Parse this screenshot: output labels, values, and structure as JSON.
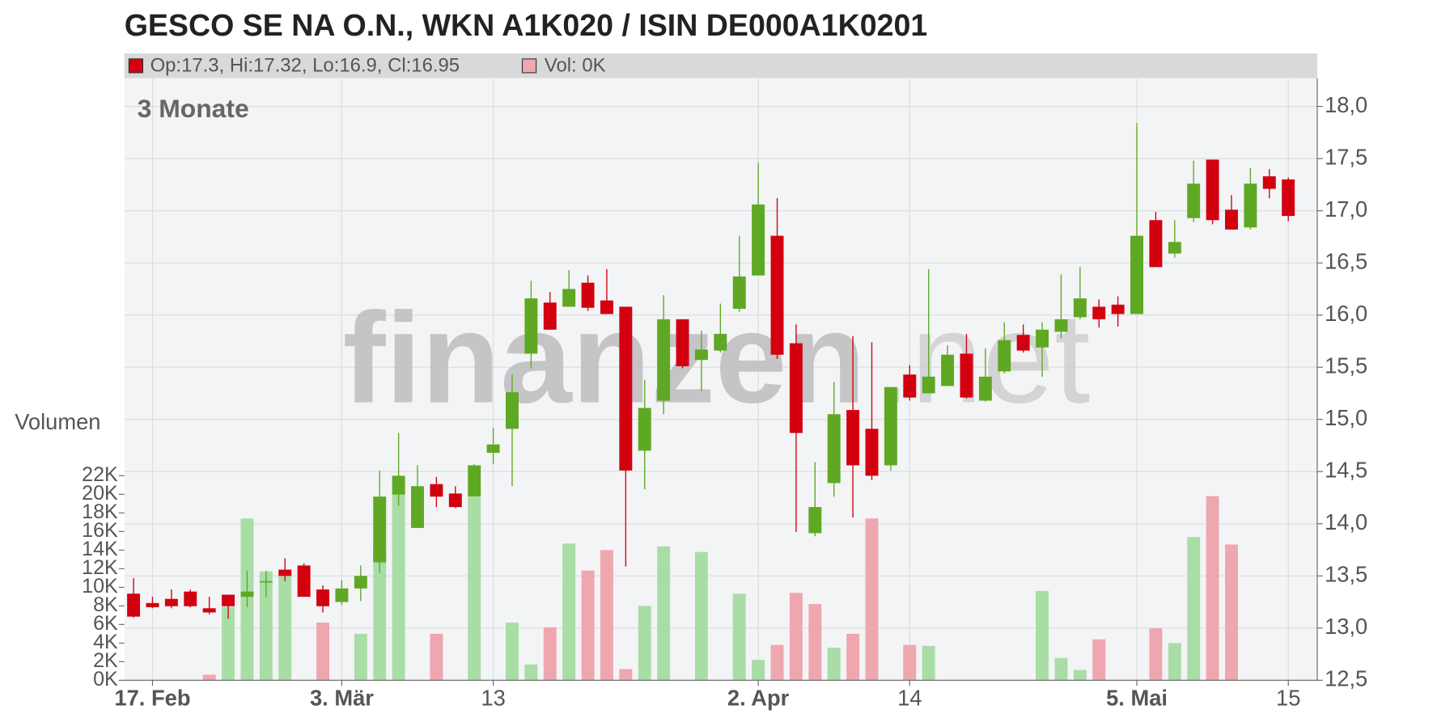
{
  "chart_data": {
    "type": "candlestick",
    "title": "GESCO SE NA O.N., WKN A1K020 / ISIN DE000A1K0201",
    "legend": [
      "Op:17.3, Hi:17.32, Lo:16.9, Cl:16.95",
      "Vol: 0K"
    ],
    "period_label": "3 Monate",
    "y2_label": "Volumen",
    "watermark": [
      "finanzen",
      ".net"
    ],
    "categories": [
      null,
      "17. Feb",
      null,
      null,
      null,
      null,
      null,
      null,
      null,
      null,
      null,
      "3. Mär",
      null,
      null,
      null,
      null,
      null,
      null,
      null,
      "13",
      null,
      null,
      null,
      null,
      null,
      null,
      null,
      null,
      null,
      null,
      null,
      null,
      null,
      "2. Apr",
      null,
      null,
      null,
      null,
      null,
      null,
      null,
      "14",
      null,
      null,
      null,
      null,
      null,
      null,
      null,
      null,
      null,
      null,
      null,
      "5. Mai",
      null,
      null,
      null,
      null,
      null,
      null,
      null,
      "15"
    ],
    "open": [
      13.33,
      13.24,
      13.28,
      13.35,
      13.19,
      13.32,
      13.3,
      13.44,
      13.56,
      13.6,
      13.37,
      13.25,
      13.38,
      13.63,
      14.28,
      13.96,
      14.38,
      14.29,
      14.26,
      14.68,
      14.91,
      15.63,
      16.12,
      16.08,
      16.31,
      16.14,
      16.08,
      14.7,
      15.18,
      15.96,
      15.57,
      15.66,
      16.06,
      16.38,
      16.76,
      15.73,
      13.91,
      14.39,
      15.09,
      14.91,
      14.56,
      15.43,
      15.25,
      15.32,
      15.63,
      15.18,
      15.46,
      15.81,
      15.69,
      15.84,
      15.98,
      16.08,
      16.1,
      16.01,
      16.91,
      16.59,
      16.93,
      17.49,
      17.01,
      16.84,
      17.33,
      17.3
    ],
    "high": [
      13.48,
      13.3,
      13.37,
      13.37,
      13.3,
      13.32,
      13.55,
      13.55,
      13.67,
      13.62,
      13.41,
      13.46,
      13.6,
      14.51,
      14.87,
      14.56,
      14.45,
      14.36,
      14.57,
      14.92,
      15.43,
      16.33,
      16.22,
      16.43,
      16.38,
      16.44,
      16.08,
      15.38,
      16.19,
      15.96,
      15.85,
      16.11,
      16.76,
      17.46,
      17.12,
      15.91,
      14.59,
      15.36,
      15.8,
      15.74,
      15.31,
      15.52,
      16.44,
      15.71,
      15.82,
      15.68,
      15.93,
      15.91,
      15.93,
      16.39,
      16.46,
      16.15,
      16.18,
      17.84,
      16.99,
      16.91,
      17.48,
      17.49,
      17.15,
      17.41,
      17.4,
      17.32
    ],
    "low": [
      13.1,
      13.19,
      13.19,
      13.2,
      13.13,
      13.09,
      13.2,
      13.3,
      13.45,
      13.3,
      13.15,
      13.22,
      13.26,
      13.53,
      14.17,
      13.96,
      14.16,
      14.15,
      14.26,
      14.57,
      14.36,
      15.49,
      15.86,
      16.08,
      16.04,
      16.01,
      13.59,
      14.33,
      15.05,
      15.49,
      15.27,
      15.64,
      16.03,
      16.38,
      15.58,
      13.92,
      13.88,
      14.26,
      14.06,
      14.42,
      14.51,
      15.18,
      15.25,
      15.32,
      15.2,
      15.17,
      15.44,
      15.64,
      15.41,
      15.78,
      15.96,
      15.88,
      15.89,
      16.01,
      16.46,
      16.55,
      16.89,
      16.87,
      16.82,
      16.82,
      17.12,
      16.9
    ],
    "close": [
      13.11,
      13.2,
      13.21,
      13.21,
      13.15,
      13.21,
      13.35,
      13.45,
      13.5,
      13.3,
      13.21,
      13.38,
      13.5,
      14.26,
      14.46,
      14.36,
      14.26,
      14.16,
      14.56,
      14.76,
      15.26,
      16.16,
      15.86,
      16.25,
      16.07,
      16.01,
      14.51,
      15.11,
      15.96,
      15.51,
      15.67,
      15.82,
      16.37,
      17.06,
      15.62,
      14.87,
      14.16,
      15.05,
      14.56,
      14.46,
      15.31,
      15.21,
      15.41,
      15.62,
      15.21,
      15.41,
      15.76,
      15.66,
      15.86,
      15.96,
      16.16,
      15.96,
      16.01,
      16.76,
      16.46,
      16.7,
      17.26,
      16.91,
      16.82,
      17.26,
      17.21,
      16.95
    ],
    "volume": [
      0,
      0,
      0,
      0,
      600,
      7900,
      17400,
      11700,
      11700,
      0,
      6200,
      0,
      5000,
      14100,
      20000,
      0,
      5000,
      0,
      19700,
      0,
      6200,
      1700,
      5700,
      14700,
      11800,
      14000,
      1200,
      8000,
      14400,
      0,
      13800,
      0,
      9300,
      2200,
      3800,
      9400,
      8200,
      3500,
      5000,
      17400,
      0,
      3800,
      3700,
      0,
      0,
      0,
      0,
      0,
      9600,
      2400,
      1100,
      4400,
      0,
      0,
      5600,
      4000,
      15400,
      19800,
      14600,
      0,
      0,
      0
    ],
    "up_color": "#5fa823",
    "down_color": "#d3000f",
    "volume_up_color": "#a9dda6",
    "volume_down_color": "#eea7af",
    "ylim": [
      12.5,
      18.27
    ],
    "yticks": [
      {
        "value": 12.5,
        "label": "12,5"
      },
      {
        "value": 13,
        "label": "13,0"
      },
      {
        "value": 13.5,
        "label": "13,5"
      },
      {
        "value": 14,
        "label": "14,0"
      },
      {
        "value": 14.5,
        "label": "14,5"
      },
      {
        "value": 15,
        "label": "15,0"
      },
      {
        "value": 15.5,
        "label": "15,5"
      },
      {
        "value": 16,
        "label": "16,0"
      },
      {
        "value": 16.5,
        "label": "16,5"
      },
      {
        "value": 17,
        "label": "17,0"
      },
      {
        "value": 17.5,
        "label": "17,5"
      },
      {
        "value": 18,
        "label": "18,0"
      }
    ],
    "y2lim": [
      0,
      64750
    ],
    "y2ticks": [
      {
        "value": 0,
        "label": "0K"
      },
      {
        "value": 2000,
        "label": "2K"
      },
      {
        "value": 4000,
        "label": "4K"
      },
      {
        "value": 6000,
        "label": "6K"
      },
      {
        "value": 8000,
        "label": "8K"
      },
      {
        "value": 10000,
        "label": "10K"
      },
      {
        "value": 12000,
        "label": "12K"
      },
      {
        "value": 14000,
        "label": "14K"
      },
      {
        "value": 16000,
        "label": "16K"
      },
      {
        "value": 18000,
        "label": "18K"
      },
      {
        "value": 20000,
        "label": "20K"
      },
      {
        "value": 22000,
        "label": "22K"
      }
    ],
    "grid": true
  }
}
